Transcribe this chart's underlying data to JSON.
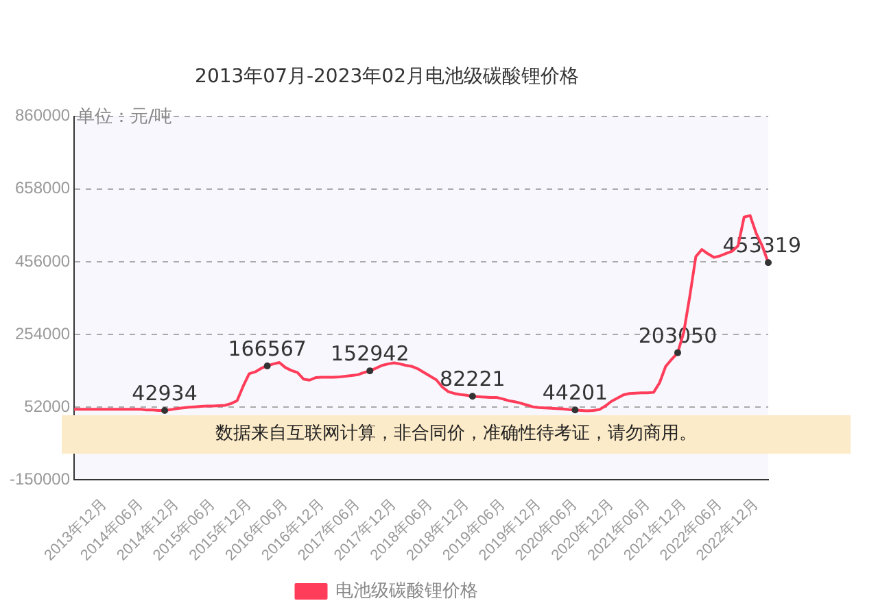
{
  "chart_data": {
    "type": "line",
    "title": "2013年07月-2023年02月电池级碳酸锂价格",
    "ylabel": "单位：元/吨",
    "annotations": [
      "数据来自互联网计算，非合同价，准确性待考证，请勿商用。"
    ],
    "categories": [
      null,
      null,
      null,
      null,
      null,
      "2013年12月",
      null,
      null,
      null,
      null,
      null,
      "2014年06月",
      null,
      null,
      null,
      null,
      null,
      "2014年12月",
      null,
      null,
      null,
      null,
      null,
      "2015年06月",
      null,
      null,
      null,
      null,
      null,
      "2015年12月",
      null,
      null,
      null,
      null,
      null,
      "2016年06月",
      null,
      null,
      null,
      null,
      null,
      "2016年12月",
      null,
      null,
      null,
      null,
      null,
      "2017年06月",
      null,
      null,
      null,
      null,
      null,
      "2017年12月",
      null,
      null,
      null,
      null,
      null,
      "2018年06月",
      null,
      null,
      null,
      null,
      null,
      "2018年12月",
      null,
      null,
      null,
      null,
      null,
      "2019年06月",
      null,
      null,
      null,
      null,
      null,
      "2019年12月",
      null,
      null,
      null,
      null,
      null,
      "2020年06月",
      null,
      null,
      null,
      null,
      null,
      "2020年12月",
      null,
      null,
      null,
      null,
      null,
      "2021年06月",
      null,
      null,
      null,
      null,
      null,
      "2021年12月",
      null,
      null,
      null,
      null,
      null,
      "2022年06月",
      null,
      null,
      null,
      null,
      null,
      "2022年12月",
      null,
      null
    ],
    "series": [
      {
        "name": "电池级碳酸锂价格",
        "color": "#ff3d5a",
        "values": [
          46000,
          46000,
          46000,
          46000,
          46000,
          46000,
          46000,
          46000,
          46000,
          46000,
          46000,
          46000,
          44000,
          44000,
          43000,
          42934,
          45000,
          48000,
          50000,
          52000,
          53000,
          54000,
          55000,
          55000,
          56000,
          57000,
          62000,
          70000,
          110000,
          145000,
          150000,
          160000,
          166567,
          172000,
          176000,
          162000,
          154000,
          148000,
          130000,
          127000,
          134000,
          135000,
          135000,
          135000,
          136000,
          138000,
          140000,
          142000,
          148000,
          152942,
          160000,
          168000,
          172000,
          175000,
          172000,
          168000,
          165000,
          158000,
          148000,
          138000,
          128000,
          108000,
          95000,
          90000,
          87000,
          85000,
          82221,
          81000,
          80000,
          79000,
          79000,
          75000,
          70000,
          67000,
          63000,
          58000,
          53000,
          51000,
          50000,
          49000,
          48000,
          47000,
          45000,
          44201,
          43000,
          42000,
          43000,
          45000,
          55000,
          68000,
          77000,
          86000,
          90000,
          91000,
          92000,
          92000,
          93000,
          120000,
          165000,
          185000,
          203050,
          260000,
          360000,
          470000,
          490000,
          478000,
          468000,
          472000,
          479000,
          485000,
          500000,
          580000,
          584000,
          535000,
          500000,
          453319
        ],
        "value_labels": [
          null,
          null,
          null,
          null,
          null,
          null,
          null,
          null,
          null,
          null,
          null,
          null,
          null,
          null,
          null,
          "42934",
          null,
          null,
          null,
          null,
          null,
          null,
          null,
          null,
          null,
          null,
          null,
          null,
          null,
          null,
          null,
          null,
          "166567",
          null,
          null,
          null,
          null,
          null,
          null,
          null,
          null,
          null,
          null,
          null,
          null,
          null,
          null,
          null,
          null,
          "152942",
          null,
          null,
          null,
          null,
          null,
          null,
          null,
          null,
          null,
          null,
          null,
          null,
          null,
          null,
          null,
          null,
          "82221",
          null,
          null,
          null,
          null,
          null,
          null,
          null,
          null,
          null,
          null,
          null,
          null,
          null,
          null,
          null,
          null,
          "44201",
          null,
          null,
          null,
          null,
          null,
          null,
          null,
          null,
          null,
          null,
          null,
          null,
          null,
          null,
          null,
          null,
          "203050",
          null,
          null,
          null,
          null,
          null,
          null,
          null,
          null,
          null,
          null,
          null,
          null,
          null,
          null,
          "453319"
        ]
      }
    ],
    "ylim": [
      -150000,
      860000
    ],
    "yticks": [
      -150000,
      52000,
      254000,
      456000,
      658000,
      860000
    ],
    "grid": "y",
    "legend": "bottom",
    "line_style": "solid"
  }
}
